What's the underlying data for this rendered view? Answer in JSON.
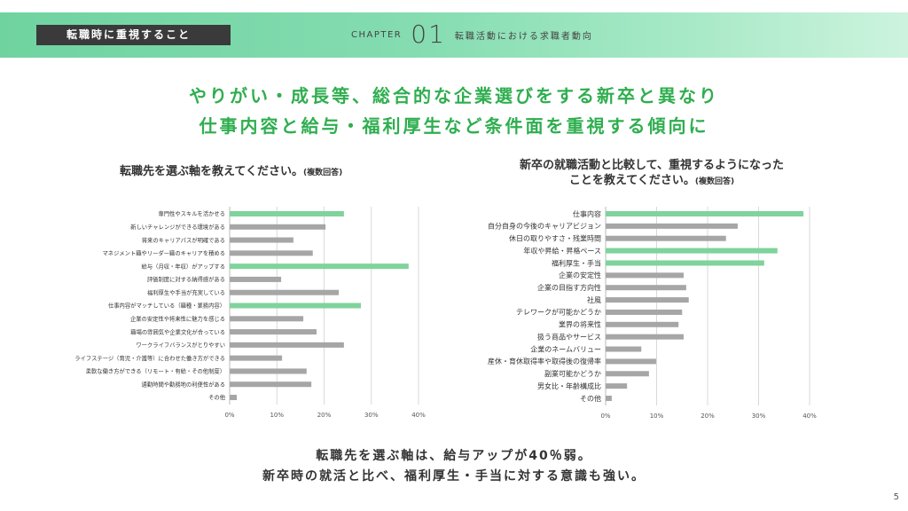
{
  "header": {
    "section_tag": "転職時に重視すること",
    "chapter_label": "CHAPTER",
    "chapter_number": "01",
    "chapter_title": "転職活動における求職者動向"
  },
  "headline": {
    "line1": "やりがい・成長等、総合的な企業選びをする新卒と異なり",
    "line2": "仕事内容と給与・福利厚生など条件面を重視する傾向に"
  },
  "summary": {
    "line1": "転職先を選ぶ軸は、給与アップが40％弱。",
    "line2": "新卒時の就活と比べ、福利厚生・手当に対する意識も強い。"
  },
  "page_number": "5",
  "colors": {
    "highlight": "#7fd39b",
    "normal": "#a6a6a6",
    "accent": "#2fae4f"
  },
  "chart_data": [
    {
      "type": "bar",
      "orientation": "horizontal",
      "title": "転職先を選ぶ軸を教えてください。",
      "title_note": "(複数回答)",
      "xlim": [
        0,
        40
      ],
      "ticks": [
        "0%",
        "10%",
        "20%",
        "30%",
        "40%"
      ],
      "grid": true,
      "categories": [
        "専門性やスキルを活かせる",
        "新しいチャレンジができる環境がある",
        "将来のキャリアパスが明確である",
        "マネジメント職やリーダー職のキャリアを積める",
        "給与（月収・年収）がアップする",
        "評価制度に対する納得感がある",
        "福利厚生や手当が充実している",
        "仕事内容がマッチしている（職種・業務内容）",
        "企業の安定性や将来性に魅力を感じる",
        "職場の雰囲気や企業文化が合っている",
        "ワークライフバランスがとりやすい",
        "ライフステージ（育児・介護等）に合わせた働き方ができる",
        "柔軟な働き方ができる（リモート・有給・その他制度）",
        "通勤時間や勤務地の利便性がある",
        "その他"
      ],
      "values": [
        24.2,
        20.3,
        13.5,
        17.6,
        37.9,
        10.9,
        23.1,
        27.8,
        15.6,
        18.4,
        24.2,
        11.1,
        16.3,
        17.3,
        1.5
      ],
      "highlighted": [
        0,
        4,
        7
      ]
    },
    {
      "type": "bar",
      "orientation": "horizontal",
      "title": "新卒の就職活動と比較して、重視するようになった",
      "title2": "ことを教えてください。",
      "title_note": "(複数回答)",
      "xlim": [
        0,
        40
      ],
      "ticks": [
        "0%",
        "10%",
        "20%",
        "30%",
        "40%"
      ],
      "grid": true,
      "categories": [
        "仕事内容",
        "自分自身の今後のキャリアビジョン",
        "休日の取りやすさ・残業時間",
        "年収や昇給・昇格ペース",
        "福利厚生・手当",
        "企業の安定性",
        "企業の目指す方向性",
        "社風",
        "テレワークが可能かどうか",
        "業界の将来性",
        "扱う商品やサービス",
        "企業のネームバリュー",
        "産休・育休取得率や取得後の復帰率",
        "副業可能かどうか",
        "男女比・年齢構成比",
        "その他"
      ],
      "values": [
        38.8,
        25.9,
        23.6,
        33.7,
        31.1,
        15.3,
        15.8,
        16.3,
        15.0,
        14.3,
        15.3,
        7.0,
        9.9,
        8.5,
        4.2,
        1.2
      ],
      "highlighted": [
        0,
        3,
        4
      ]
    }
  ]
}
